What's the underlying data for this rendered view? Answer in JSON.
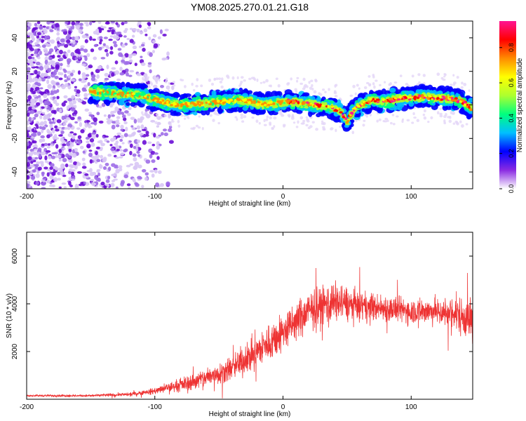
{
  "title": "YM08.2025.270.01.21.G18",
  "chart_data": [
    {
      "type": "heatmap",
      "name": "spectrogram",
      "xlabel": "Height of straight line (km)",
      "ylabel": "Frequency (Hz)",
      "xlim": [
        -200,
        148
      ],
      "ylim": [
        -50,
        50
      ],
      "xticks": [
        "-200",
        "-100",
        "0",
        "100"
      ],
      "xtick_values": [
        -200,
        -100,
        0,
        100
      ],
      "yticks": [
        "-40",
        "-20",
        "0",
        "20",
        "40"
      ],
      "ytick_values": [
        -40,
        -20,
        0,
        20,
        40
      ],
      "colorbar": {
        "label": "Normalized spectral amplitude",
        "range": [
          0,
          0.95
        ],
        "ticks": [
          "0.0",
          "0.2",
          "0.4",
          "0.6",
          "0.8"
        ],
        "tick_values": [
          0.0,
          0.2,
          0.4,
          0.6,
          0.8
        ],
        "colors": [
          "#ffffff",
          "#8a2be2",
          "#0000ff",
          "#00bfff",
          "#00ff7f",
          "#adff2f",
          "#ffff00",
          "#ff8c00",
          "#ff0000",
          "#ff1493"
        ]
      },
      "ridge_frequency_hz": {
        "x": [
          -150,
          -135,
          -120,
          -110,
          -100,
          -90,
          -80,
          -60,
          -45,
          -35,
          -25,
          -15,
          -5,
          5,
          15,
          25,
          35,
          45,
          50,
          55,
          60,
          70,
          80,
          90,
          100,
          110,
          120,
          130,
          140,
          148
        ],
        "y": [
          8,
          7,
          6,
          6,
          3,
          1,
          0,
          1,
          2,
          3,
          2,
          0,
          1,
          2,
          1,
          0,
          -1,
          -4,
          -10,
          -3,
          0,
          3,
          2,
          4,
          4,
          5,
          4,
          4,
          2,
          -3
        ]
      },
      "noise_region_km": [
        -200,
        -100
      ]
    },
    {
      "type": "line",
      "name": "snr",
      "xlabel": "Height of straight line (km)",
      "ylabel": "SNR (10 * v/v)",
      "xlim": [
        -200,
        148
      ],
      "ylim": [
        0,
        7000
      ],
      "xticks": [
        "-200",
        "-100",
        "0",
        "100"
      ],
      "xtick_values": [
        -200,
        -100,
        0,
        100
      ],
      "yticks": [
        "2000",
        "4000",
        "6000"
      ],
      "ytick_values": [
        2000,
        4000,
        6000
      ],
      "color": "#ee3333",
      "envelope": {
        "x": [
          -200,
          -150,
          -120,
          -100,
          -80,
          -60,
          -40,
          -20,
          0,
          20,
          40,
          60,
          80,
          100,
          120,
          140,
          148
        ],
        "mean": [
          150,
          150,
          200,
          350,
          600,
          900,
          1300,
          2000,
          2800,
          3700,
          4100,
          3900,
          3800,
          3700,
          3700,
          3500,
          3300
        ],
        "spread": [
          60,
          70,
          100,
          200,
          400,
          600,
          800,
          1100,
          1200,
          1200,
          1200,
          900,
          800,
          800,
          800,
          1200,
          1500
        ]
      }
    }
  ]
}
